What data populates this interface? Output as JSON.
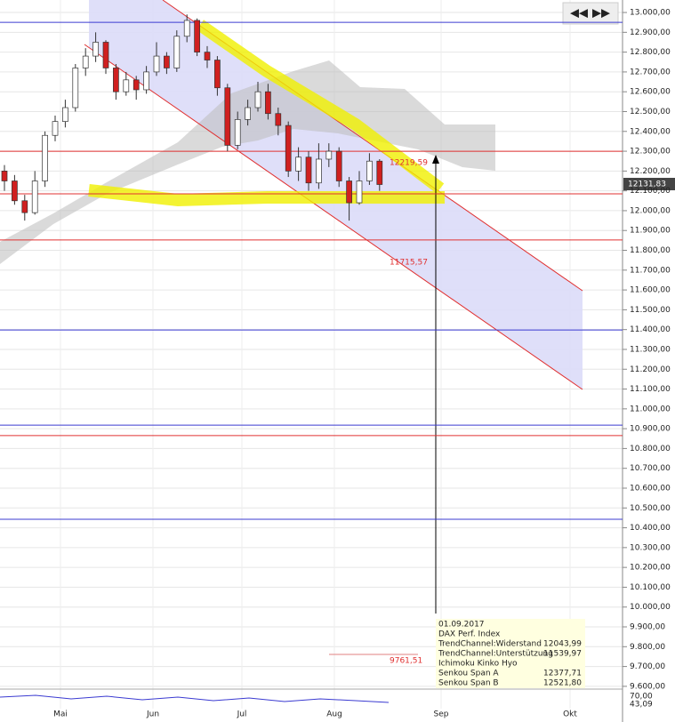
{
  "chart_data": {
    "type": "candlestick",
    "months": [
      "Mai",
      "Jun",
      "Jul",
      "Aug",
      "Sep",
      "Okt"
    ],
    "ylim": [
      9586,
      13063
    ],
    "yticks": [
      {
        "value": 13000,
        "label": "13.000,00"
      },
      {
        "value": 12900,
        "label": "12.900,00"
      },
      {
        "value": 12800,
        "label": "12.800,00"
      },
      {
        "value": 12700,
        "label": "12.700,00"
      },
      {
        "value": 12600,
        "label": "12.600,00"
      },
      {
        "value": 12500,
        "label": "12.500,00"
      },
      {
        "value": 12400,
        "label": "12.400,00"
      },
      {
        "value": 12300,
        "label": "12.300,00"
      },
      {
        "value": 12200,
        "label": "12.200,00"
      },
      {
        "value": 12100,
        "label": "12.100,00"
      },
      {
        "value": 12000,
        "label": "12.000,00"
      },
      {
        "value": 11900,
        "label": "11.900,00"
      },
      {
        "value": 11800,
        "label": "11.800,00"
      },
      {
        "value": 11700,
        "label": "11.700,00"
      },
      {
        "value": 11600,
        "label": "11.600,00"
      },
      {
        "value": 11500,
        "label": "11.500,00"
      },
      {
        "value": 11400,
        "label": "11.400,00"
      },
      {
        "value": 11300,
        "label": "11.300,00"
      },
      {
        "value": 11200,
        "label": "11.200,00"
      },
      {
        "value": 11100,
        "label": "11.100,00"
      },
      {
        "value": 11000,
        "label": "11.000,00"
      },
      {
        "value": 10900,
        "label": "10.900,00"
      },
      {
        "value": 10800,
        "label": "10.800,00"
      },
      {
        "value": 10700,
        "label": "10.700,00"
      },
      {
        "value": 10600,
        "label": "10.600,00"
      },
      {
        "value": 10500,
        "label": "10.500,00"
      },
      {
        "value": 10400,
        "label": "10.400,00"
      },
      {
        "value": 10300,
        "label": "10.300,00"
      },
      {
        "value": 10200,
        "label": "10.200,00"
      },
      {
        "value": 10100,
        "label": "10.100,00"
      },
      {
        "value": 10000,
        "label": "10.000,00"
      },
      {
        "value": 9900,
        "label": "9.900,00"
      },
      {
        "value": 9800,
        "label": "9.800,00"
      },
      {
        "value": 9700,
        "label": "9.700,00"
      },
      {
        "value": 9600,
        "label": "9.600,00"
      }
    ],
    "levels": [
      {
        "value": 12950,
        "color": "#3b3bd1"
      },
      {
        "value": 12300,
        "color": "#e03030"
      },
      {
        "value": 12085,
        "color": "#e03030"
      },
      {
        "value": 11852,
        "color": "#e03030"
      },
      {
        "value": 11398,
        "color": "#3b3bd1"
      },
      {
        "value": 10918,
        "color": "#3b3bd1"
      },
      {
        "value": 10865,
        "color": "#e03030"
      },
      {
        "value": 10443,
        "color": "#3b3bd1"
      }
    ],
    "annotations": [
      "12219,59",
      "11715,57",
      "9761,51"
    ],
    "last_price_label": "12131,83",
    "candles": {
      "open": [
        12200,
        12150,
        12050,
        11990,
        12150,
        12380,
        12450,
        12520,
        12720,
        12780,
        12850,
        12720,
        12600,
        12660,
        12610,
        12700,
        12780,
        12720,
        12880,
        12960,
        12800,
        12760,
        12620,
        12330,
        12460,
        12520,
        12600,
        12490,
        12430,
        12200,
        12270,
        12140,
        12260,
        12300,
        12150,
        12040,
        12150,
        12250
      ],
      "close": [
        12150,
        12050,
        11990,
        12150,
        12380,
        12450,
        12520,
        12720,
        12780,
        12850,
        12720,
        12600,
        12660,
        12610,
        12700,
        12780,
        12720,
        12880,
        12960,
        12800,
        12760,
        12620,
        12330,
        12460,
        12520,
        12600,
        12490,
        12430,
        12200,
        12270,
        12140,
        12260,
        12300,
        12150,
        12040,
        12150,
        12250,
        12132
      ],
      "high": [
        12230,
        12180,
        12080,
        12200,
        12400,
        12480,
        12560,
        12740,
        12820,
        12900,
        12860,
        12740,
        12700,
        12680,
        12730,
        12850,
        12800,
        12910,
        12990,
        12970,
        12830,
        12780,
        12640,
        12500,
        12560,
        12650,
        12640,
        12520,
        12450,
        12320,
        12300,
        12340,
        12340,
        12320,
        12170,
        12200,
        12290,
        12260
      ],
      "low": [
        12100,
        12030,
        11950,
        11980,
        12120,
        12350,
        12420,
        12500,
        12680,
        12750,
        12690,
        12560,
        12580,
        12560,
        12590,
        12680,
        12690,
        12700,
        12850,
        12780,
        12720,
        12580,
        12300,
        12310,
        12430,
        12500,
        12460,
        12380,
        12170,
        12150,
        12100,
        12110,
        12220,
        12120,
        11950,
        12030,
        12130,
        12100
      ]
    },
    "legend": {
      "date": "01.09.2017",
      "instrument": "DAX Perf. Index",
      "rows": [
        [
          "TrendChannel:Widerstand",
          "12043,99"
        ],
        [
          "TrendChannel:Unterstützung",
          "11539,97"
        ],
        [
          "Ichimoku Kinko Hyo",
          null
        ],
        [
          "Senkou Span A",
          "12377,71"
        ],
        [
          "Senkou Span B",
          "12521,80"
        ]
      ]
    },
    "oscillator_ticks": [
      "70,00",
      "43,09"
    ]
  }
}
